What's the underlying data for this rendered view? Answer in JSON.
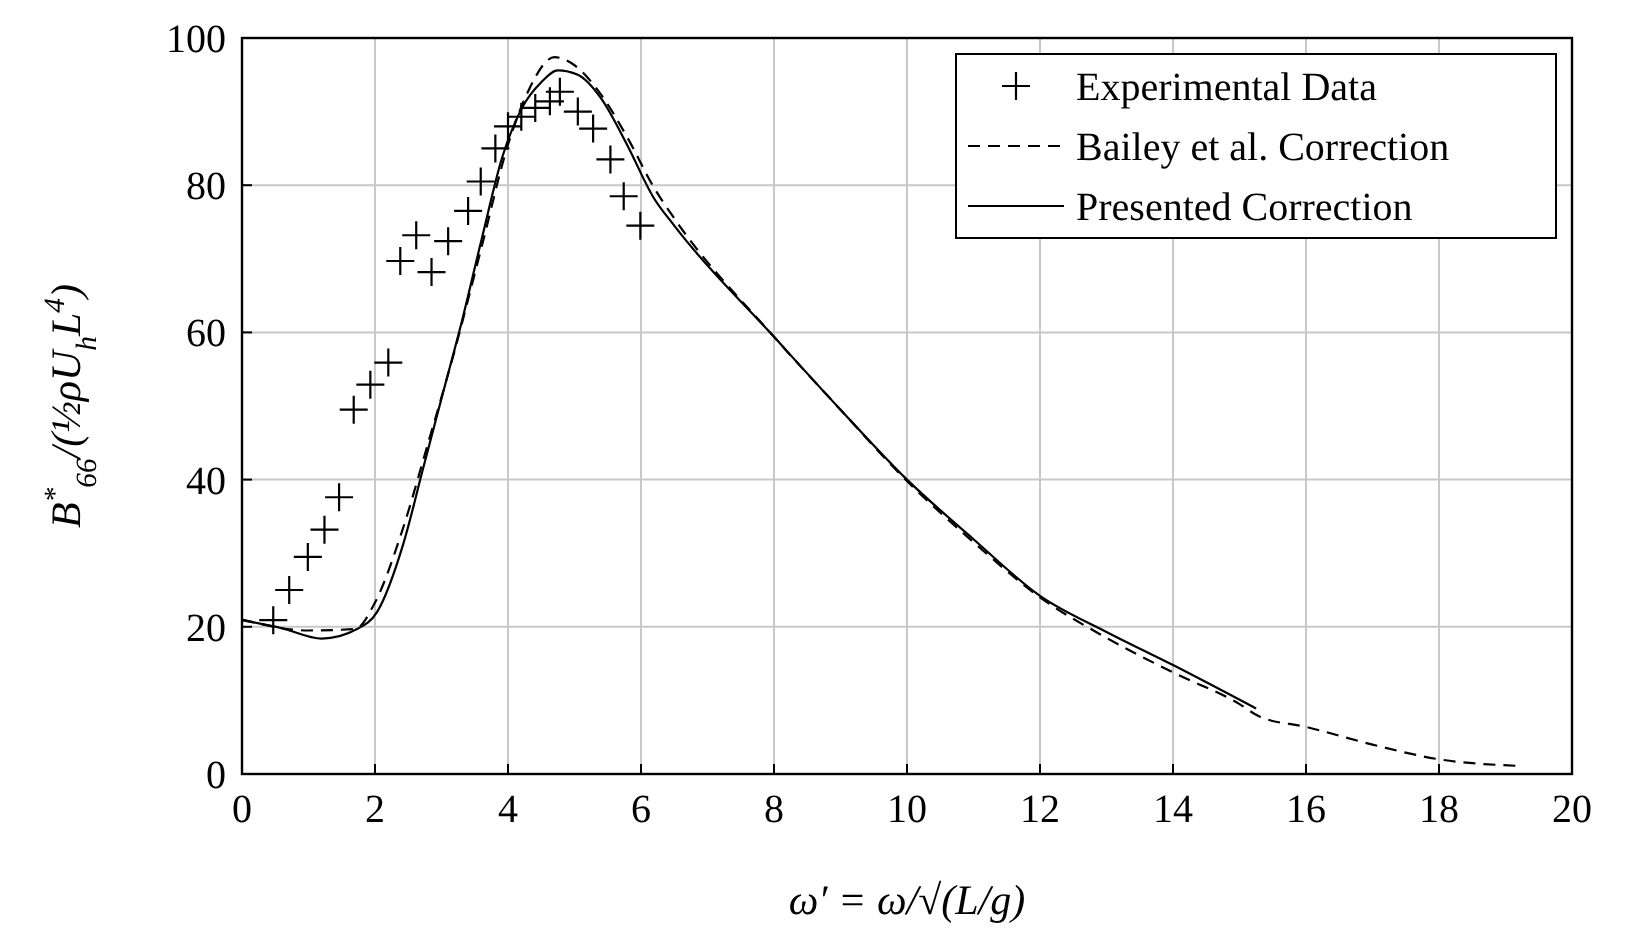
{
  "chart_data": {
    "type": "line",
    "xlabel": "ω′ = ω/√(L/g)",
    "ylabel": "B$^{*}$$_{66}$/(½ρU$_{h}$L$^{4}$)",
    "xlim": [
      0,
      20
    ],
    "ylim": [
      0,
      100
    ],
    "xticks": [
      0,
      2,
      4,
      6,
      8,
      10,
      12,
      14,
      16,
      18,
      20
    ],
    "yticks": [
      0,
      20,
      40,
      60,
      80,
      100
    ],
    "grid": true,
    "legend": "top right",
    "series": [
      {
        "name": "Experimental Data",
        "type": "scatter",
        "marker": "cross",
        "color": "#000000",
        "x": [
          0.47,
          0.71,
          0.99,
          1.24,
          1.46,
          1.68,
          1.93,
          2.2,
          2.38,
          2.62,
          2.85,
          3.1,
          3.4,
          3.59,
          3.81,
          4.0,
          4.2,
          4.41,
          4.63,
          4.78,
          5.05,
          5.28,
          5.54,
          5.74,
          5.99
        ],
        "values": [
          20.9,
          25.0,
          29.5,
          33.2,
          37.6,
          49.5,
          52.9,
          55.9,
          69.7,
          73.2,
          68.2,
          72.4,
          76.5,
          80.5,
          85.0,
          88.0,
          89.3,
          90.5,
          91.4,
          92.7,
          90.0,
          87.7,
          83.5,
          78.5,
          74.5
        ]
      },
      {
        "name": "Bailey et al. Correction",
        "type": "line",
        "line_style": "dashed",
        "color": "#000000",
        "x": [
          0,
          1,
          1.7,
          2,
          2.4,
          2.8,
          3.2,
          3.6,
          4,
          4.3,
          4.7,
          5,
          5.4,
          5.8,
          6.2,
          6.5,
          8,
          9,
          10,
          11,
          12,
          13,
          14,
          15,
          15.3,
          16,
          17,
          18,
          19.2
        ],
        "values": [
          21,
          19.5,
          19.7,
          23.3,
          32.8,
          45,
          57.6,
          71.5,
          85.5,
          92.7,
          97.4,
          96.3,
          92.3,
          86.4,
          79.6,
          75.5,
          59.4,
          49.5,
          39.8,
          31.5,
          24,
          18.5,
          13.8,
          9.5,
          7.8,
          6.4,
          4,
          2,
          1.1
        ]
      },
      {
        "name": "Presented Correction",
        "line_style": "solid",
        "color": "#000000",
        "x": [
          0,
          0.6,
          1.2,
          1.73,
          2.03,
          2.43,
          2.72,
          3.02,
          3.32,
          3.61,
          3.91,
          4.21,
          4.5,
          4.75,
          5.05,
          5.4,
          5.79,
          6.19,
          6.5,
          8,
          9,
          10,
          11,
          12,
          13,
          14,
          15.25
        ],
        "values": [
          20.9,
          19.8,
          18.4,
          19.7,
          22,
          31.4,
          41.4,
          51.7,
          62,
          72.9,
          83.7,
          90.5,
          94,
          95.6,
          95,
          91.8,
          85.5,
          78.3,
          74.5,
          59.4,
          49.5,
          40,
          31.9,
          24.2,
          19.3,
          14.8,
          8.9
        ]
      }
    ]
  }
}
